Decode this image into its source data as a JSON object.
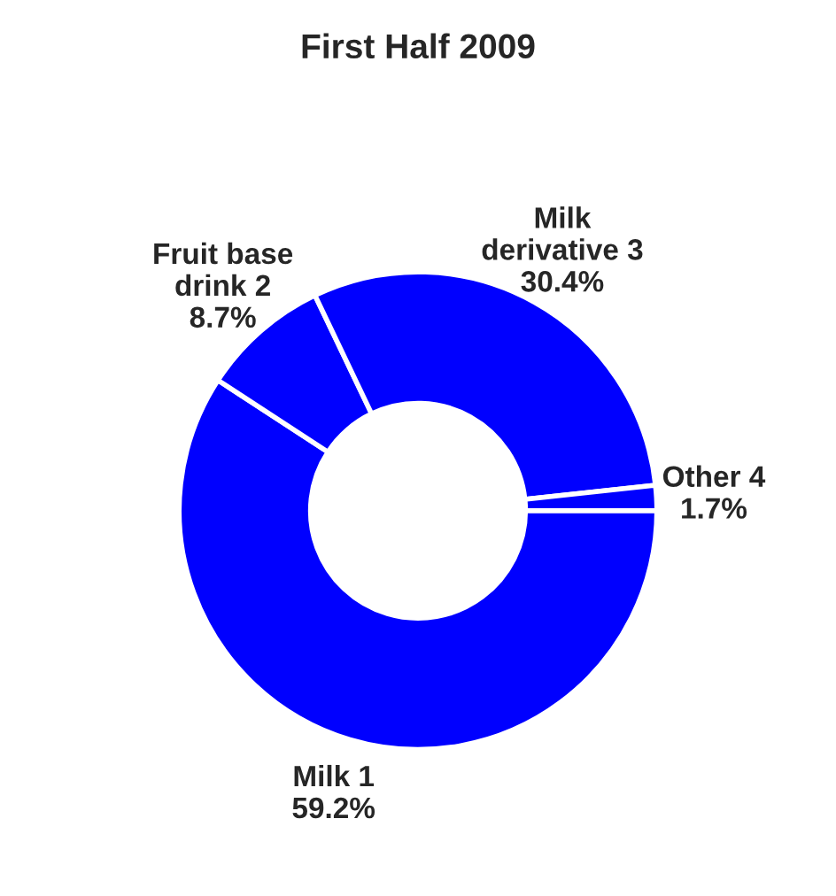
{
  "chart_data": {
    "type": "donut",
    "title": "First Half 2009",
    "categories": [
      "Milk 1",
      "Fruit base\ndrink 2",
      "Milk\nderivative 3",
      "Other 4"
    ],
    "values": [
      59.2,
      8.7,
      30.4,
      1.7
    ],
    "value_labels": [
      "59.2%",
      "8.7%",
      "30.4%",
      "1.7%"
    ],
    "colors": [
      "#0000ff",
      "#0000ff",
      "#0000ff",
      "#0000ff"
    ]
  }
}
